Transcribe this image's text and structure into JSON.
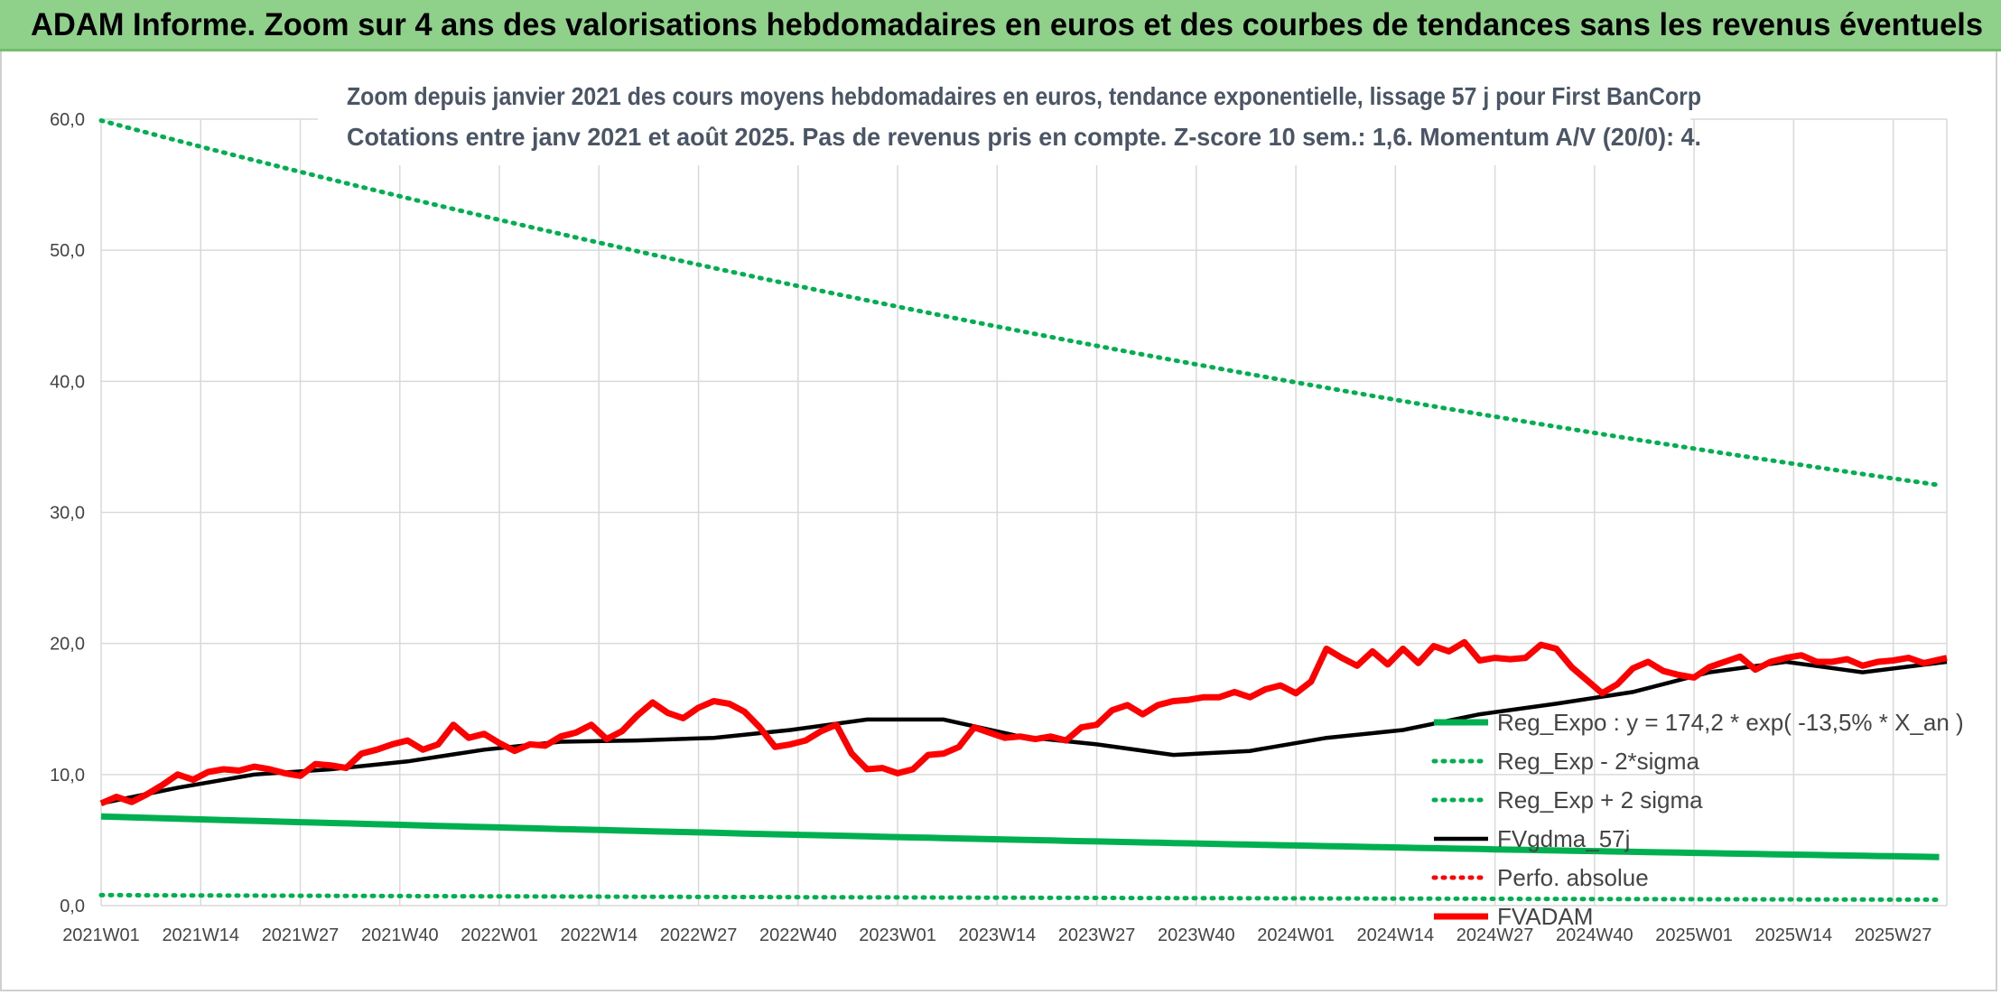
{
  "banner": {
    "title": "ADAM Informe. Zoom sur 4 ans des valorisations hebdomadaires en euros et des courbes de tendances sans les revenus éventuels"
  },
  "colors": {
    "banner_bg": "#8fd18a",
    "green": "#00b050",
    "black": "#000000",
    "red": "#ff0000"
  },
  "chart_data": {
    "type": "line",
    "title": "Zoom depuis janvier 2021 des cours moyens hebdomadaires en euros, tendance exponentielle, lissage 57 j pour First BanCorp",
    "subtitle": "Cotations entre janv 2021 et août 2025. Pas de revenus pris en compte. Z-score 10 sem.: 1,6. Momentum A/V (20/0): 4.",
    "xlabel": "",
    "ylabel": "",
    "ylim": [
      0,
      60
    ],
    "yticks": [
      "0,0",
      "10,0",
      "20,0",
      "30,0",
      "40,0",
      "50,0",
      "60,0"
    ],
    "x_ticks": [
      "2021W01",
      "2021W14",
      "2021W27",
      "2021W40",
      "2022W01",
      "2022W14",
      "2022W27",
      "2022W40",
      "2023W01",
      "2023W14",
      "2023W27",
      "2023W40",
      "2024W01",
      "2024W14",
      "2024W27",
      "2024W40",
      "2025W01",
      "2025W14",
      "2025W27"
    ],
    "weeks_total": 242,
    "grid": true,
    "legend_position": "right",
    "series": [
      {
        "name": "Reg_Expo : y = 174,2 * exp( -13,5% * X_an )",
        "style": "solid",
        "color": "#00b050",
        "x": [
          0,
          241
        ],
        "y": [
          6.8,
          3.7
        ]
      },
      {
        "name": "Reg_Exp - 2*sigma",
        "style": "dotted",
        "color": "#00b050",
        "x": [
          0,
          241
        ],
        "y": [
          0.8,
          0.45
        ]
      },
      {
        "name": "Reg_Exp + 2 sigma",
        "style": "dotted",
        "color": "#00b050",
        "x": [
          0,
          241
        ],
        "y": [
          59.9,
          32.0
        ]
      },
      {
        "name": "FVgdma_57j",
        "style": "solid",
        "color": "#000000",
        "x": [
          0,
          10,
          20,
          30,
          40,
          50,
          60,
          70,
          80,
          90,
          100,
          110,
          120,
          130,
          140,
          150,
          160,
          170,
          180,
          190,
          200,
          210,
          220,
          230,
          241
        ],
        "y": [
          7.8,
          9.0,
          10.0,
          10.4,
          11.0,
          11.9,
          12.5,
          12.6,
          12.8,
          13.4,
          14.2,
          14.2,
          12.9,
          12.3,
          11.5,
          11.8,
          12.8,
          13.4,
          14.6,
          15.4,
          16.3,
          17.8,
          18.6,
          17.8,
          18.6
        ]
      },
      {
        "name": "Perfo. absolue",
        "style": "dotted",
        "color": "#ff0000",
        "x": [],
        "y": []
      },
      {
        "name": "FVADAM",
        "style": "solid",
        "color": "#ff0000",
        "x": [
          0,
          2,
          4,
          6,
          8,
          10,
          12,
          14,
          16,
          18,
          20,
          22,
          24,
          26,
          28,
          30,
          32,
          34,
          36,
          38,
          40,
          42,
          44,
          46,
          48,
          50,
          52,
          54,
          56,
          58,
          60,
          62,
          64,
          66,
          68,
          70,
          72,
          74,
          76,
          78,
          80,
          82,
          84,
          86,
          88,
          90,
          92,
          94,
          96,
          98,
          100,
          102,
          104,
          106,
          108,
          110,
          112,
          114,
          116,
          118,
          120,
          122,
          124,
          126,
          128,
          130,
          132,
          134,
          136,
          138,
          140,
          142,
          144,
          146,
          148,
          150,
          152,
          154,
          156,
          158,
          160,
          162,
          164,
          166,
          168,
          170,
          172,
          174,
          176,
          178,
          180,
          182,
          184,
          186,
          188,
          190,
          192,
          194,
          196,
          198,
          200,
          202,
          204,
          206,
          208,
          210,
          212,
          214,
          216,
          218,
          220,
          222,
          224,
          226,
          228,
          230,
          232,
          234,
          236,
          238,
          241
        ],
        "y": [
          7.8,
          8.3,
          7.9,
          8.5,
          9.2,
          10.0,
          9.6,
          10.2,
          10.4,
          10.3,
          10.6,
          10.4,
          10.1,
          9.9,
          10.8,
          10.7,
          10.5,
          11.6,
          11.9,
          12.3,
          12.6,
          11.9,
          12.3,
          13.8,
          12.8,
          13.1,
          12.4,
          11.8,
          12.3,
          12.2,
          12.9,
          13.2,
          13.8,
          12.7,
          13.3,
          14.5,
          15.5,
          14.7,
          14.3,
          15.1,
          15.6,
          15.4,
          14.8,
          13.6,
          12.1,
          12.3,
          12.6,
          13.3,
          13.8,
          11.6,
          10.4,
          10.5,
          10.1,
          10.4,
          11.5,
          11.6,
          12.1,
          13.6,
          13.2,
          12.8,
          12.9,
          12.7,
          12.9,
          12.6,
          13.6,
          13.8,
          14.9,
          15.3,
          14.6,
          15.3,
          15.6,
          15.7,
          15.9,
          15.9,
          16.3,
          15.9,
          16.5,
          16.8,
          16.2,
          17.1,
          19.6,
          18.9,
          18.3,
          19.4,
          18.4,
          19.6,
          18.5,
          19.8,
          19.4,
          20.1,
          18.7,
          18.9,
          18.8,
          18.9,
          19.9,
          19.6,
          18.2,
          17.2,
          16.2,
          16.9,
          18.1,
          18.6,
          17.9,
          17.6,
          17.4,
          18.2,
          18.6,
          19.0,
          18.0,
          18.6,
          18.9,
          19.1,
          18.6,
          18.6,
          18.8,
          18.3,
          18.6,
          18.7,
          18.9,
          18.5,
          18.9
        ]
      }
    ]
  }
}
